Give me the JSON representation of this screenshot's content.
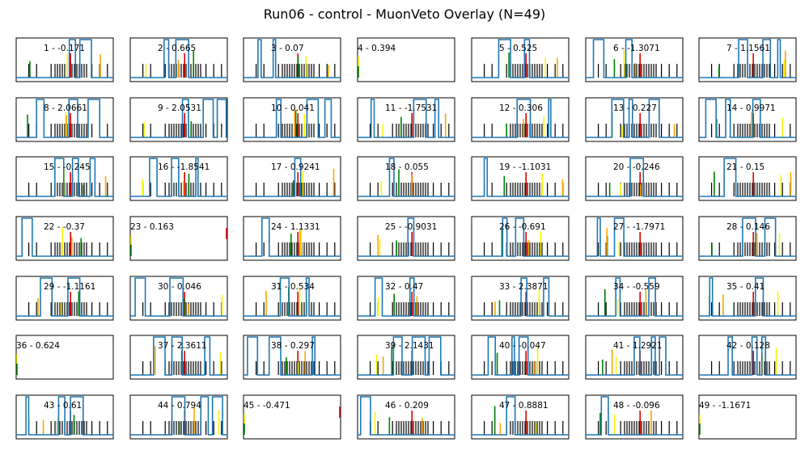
{
  "title": "Run06 - control - MuonVeto Overlay (N=49)",
  "colors": {
    "trace": "#1f77b4",
    "tick": "#000000",
    "red": "#e00000",
    "yellow": "#f5f500",
    "green": "#008000",
    "orange": "#ffa500",
    "frame": "#000000"
  },
  "chart_data": {
    "type": "line",
    "title": "Run06 - control - MuonVeto Overlay (N=49)",
    "subplot_count": 49,
    "layout": "7x7",
    "panels": [
      {
        "label": "1 - -0.171"
      },
      {
        "label": "2 - 0.665"
      },
      {
        "label": "3 - 0.07"
      },
      {
        "label": "4 - 0.394"
      },
      {
        "label": "5 - 0.525"
      },
      {
        "label": "6 - -1.3071"
      },
      {
        "label": "7 - 1.1561"
      },
      {
        "label": "8 - 2.0661"
      },
      {
        "label": "9 - 2.0531"
      },
      {
        "label": "10 - 0.041"
      },
      {
        "label": "11 - -1.7531"
      },
      {
        "label": "12 - 0.306"
      },
      {
        "label": "13 - 0.227"
      },
      {
        "label": "14 - 0.9971"
      },
      {
        "label": "15 - -0.245"
      },
      {
        "label": "16 - -1.8541"
      },
      {
        "label": "17 - 0.9241"
      },
      {
        "label": "18 - 0.055"
      },
      {
        "label": "19 - -1.1031"
      },
      {
        "label": "20 - -0.246"
      },
      {
        "label": "21 - 0.15"
      },
      {
        "label": "22 - -0.37"
      },
      {
        "label": "23 - 0.163"
      },
      {
        "label": "24 - 1.1331"
      },
      {
        "label": "25 - -0.9031"
      },
      {
        "label": "26 - -0.691"
      },
      {
        "label": "27 - -1.7971"
      },
      {
        "label": "28 - 0.146"
      },
      {
        "label": "29 - -1.1161"
      },
      {
        "label": "30 - 0.046"
      },
      {
        "label": "31 - 0.534"
      },
      {
        "label": "32 - 0.47"
      },
      {
        "label": "33 - 2.3871"
      },
      {
        "label": "34 - -0.559"
      },
      {
        "label": "35 - 0.41"
      },
      {
        "label": "36 - 0.624"
      },
      {
        "label": "37 - 2.3611"
      },
      {
        "label": "38 - 0.297"
      },
      {
        "label": "39 - 2.1431"
      },
      {
        "label": "40 - -0.047"
      },
      {
        "label": "41 - 1.2921"
      },
      {
        "label": "42 - 0.128"
      },
      {
        "label": "43 - 0.61"
      },
      {
        "label": "44 - 0.794"
      },
      {
        "label": "45 - -0.471"
      },
      {
        "label": "46 - 0.209"
      },
      {
        "label": "47 - 0.8881"
      },
      {
        "label": "48 - -0.096"
      },
      {
        "label": "49 - -1.1671"
      }
    ]
  }
}
